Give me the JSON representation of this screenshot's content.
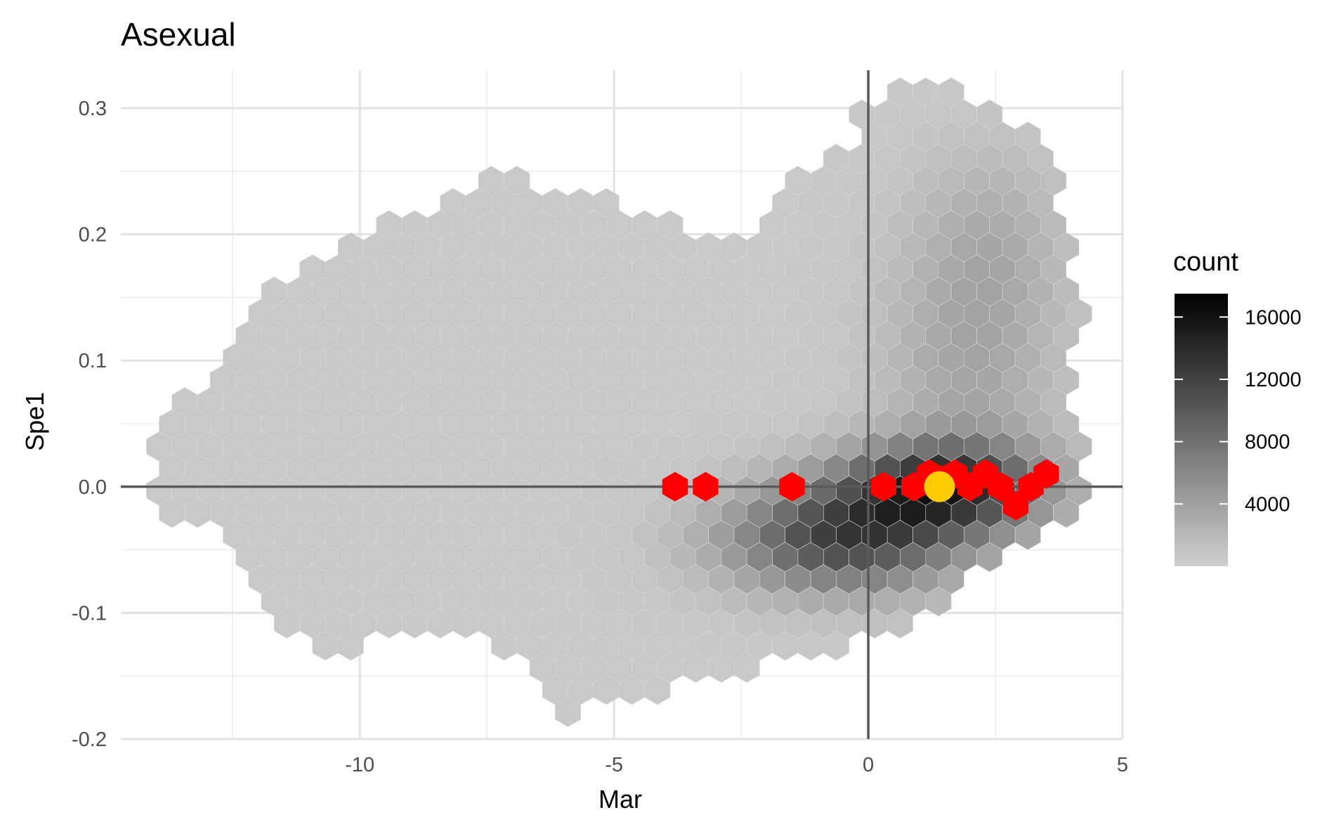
{
  "chart_data": {
    "type": "hexbin",
    "title": "Asexual",
    "xlabel": "Mar",
    "ylabel": "Spe1",
    "xlim": [
      -14.7,
      5.0
    ],
    "ylim": [
      -0.2,
      0.33
    ],
    "x_ticks": [
      -10,
      -5,
      0,
      5
    ],
    "x_tick_labels": [
      "-10",
      "-5",
      "0",
      "5"
    ],
    "y_ticks": [
      -0.2,
      -0.1,
      0.0,
      0.1,
      0.2,
      0.3
    ],
    "y_tick_labels": [
      "-0.2",
      "-0.1",
      "0.0",
      "0.1",
      "0.2",
      "0.3"
    ],
    "reference_lines": {
      "x": 0,
      "y": 0
    },
    "legend": {
      "title": "count",
      "placement": "right",
      "labels": [
        "16000",
        "12000",
        "8000",
        "4000"
      ],
      "values": [
        16000,
        12000,
        8000,
        4000
      ],
      "range": [
        0,
        17500
      ],
      "colors": [
        "#d0d0d0",
        "#000000"
      ]
    },
    "grid": true,
    "highlight_color": "#ff0000",
    "point_color": "#ffcc00",
    "point": {
      "x": 1.4,
      "y": 0.0
    },
    "highlight_hexes": [
      {
        "x": -3.8,
        "y": 0.0
      },
      {
        "x": -3.2,
        "y": 0.0
      },
      {
        "x": -1.5,
        "y": 0.0
      },
      {
        "x": 0.3,
        "y": 0.0
      },
      {
        "x": 0.9,
        "y": 0.0
      },
      {
        "x": 1.2,
        "y": 0.01
      },
      {
        "x": 1.7,
        "y": 0.01
      },
      {
        "x": 2.3,
        "y": 0.01
      },
      {
        "x": 2.0,
        "y": 0.0
      },
      {
        "x": 2.6,
        "y": 0.0
      },
      {
        "x": 3.2,
        "y": 0.0
      },
      {
        "x": 3.5,
        "y": 0.01
      },
      {
        "x": 2.9,
        "y": -0.015
      }
    ],
    "density_centers": [
      {
        "x": -0.5,
        "y": -0.04,
        "count": 11000,
        "sx": 1.6,
        "sy": 0.03
      },
      {
        "x": 1.5,
        "y": 0.0,
        "count": 12000,
        "sx": 1.4,
        "sy": 0.025
      },
      {
        "x": 2.0,
        "y": 0.1,
        "count": 3000,
        "sx": 1.2,
        "sy": 0.08
      },
      {
        "x": 2.5,
        "y": 0.2,
        "count": 1500,
        "sx": 1.0,
        "sy": 0.05
      }
    ],
    "base_count": 600
  }
}
